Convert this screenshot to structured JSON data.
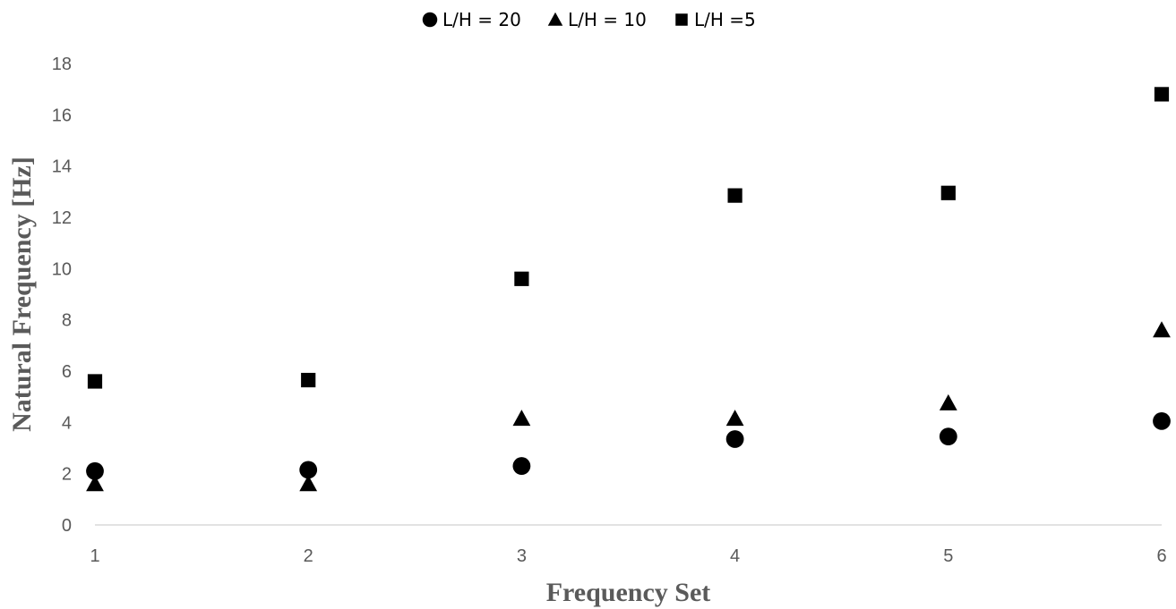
{
  "chart_data": {
    "type": "scatter",
    "title": "",
    "xlabel": "Frequency Set",
    "ylabel": "Natural Frequency [Hz]",
    "xlim": [
      1,
      6
    ],
    "ylim": [
      0,
      18
    ],
    "x_ticks": [
      "1",
      "2",
      "3",
      "4",
      "5",
      "6"
    ],
    "y_ticks": [
      "0",
      "2",
      "4",
      "6",
      "8",
      "10",
      "12",
      "14",
      "16",
      "18"
    ],
    "grid": false,
    "legend_position": "top",
    "series": [
      {
        "name": "L/H = 20",
        "marker": "circle",
        "color": "#000000",
        "x": [
          1,
          2,
          3,
          4,
          5,
          6
        ],
        "y": [
          2.1,
          2.15,
          2.3,
          3.35,
          3.45,
          4.05
        ]
      },
      {
        "name": "L/H = 10",
        "marker": "triangle",
        "color": "#000000",
        "x": [
          1,
          2,
          3,
          4,
          5,
          6
        ],
        "y": [
          1.6,
          1.6,
          4.15,
          4.15,
          4.75,
          7.6
        ]
      },
      {
        "name": "L/H =5",
        "marker": "square",
        "color": "#000000",
        "x": [
          1,
          2,
          3,
          4,
          5,
          6
        ],
        "y": [
          5.6,
          5.65,
          9.6,
          12.85,
          12.95,
          16.8
        ]
      }
    ]
  }
}
